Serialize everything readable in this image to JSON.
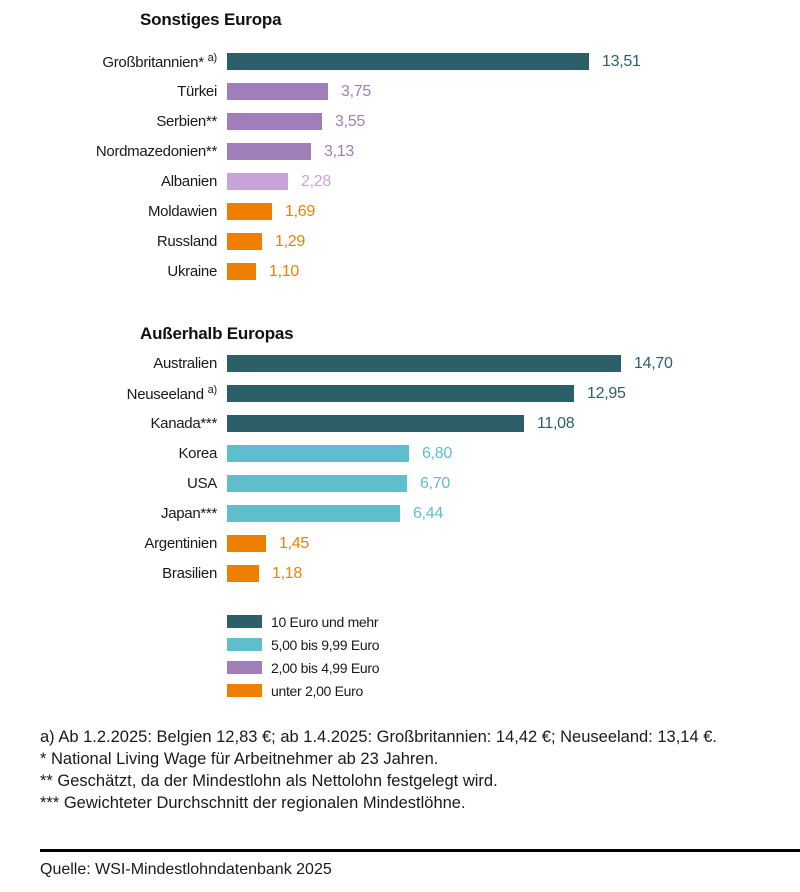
{
  "palette": {
    "teal_dark": "#2D5F68",
    "teal_light": "#5EBECD",
    "purple": "#9F7EB9",
    "purple_light": "#C6A4DB",
    "orange": "#EF7F00",
    "text": "#1A1A1A",
    "divider": "#000000"
  },
  "chart_data": {
    "type": "bar",
    "orientation": "horizontal",
    "unit": "Euro",
    "axis": "none",
    "xlim": [
      0,
      15
    ],
    "sections": [
      {
        "title": "Sonstiges Europa",
        "bars": [
          {
            "label": "Großbritannien*",
            "superscript": "a)",
            "value": 13.51,
            "value_label": "13,51",
            "category": "10 Euro und mehr",
            "color_key": "teal_dark"
          },
          {
            "label": "Türkei",
            "superscript": "",
            "value": 3.75,
            "value_label": "3,75",
            "category": "2,00 bis 4,99 Euro",
            "color_key": "purple"
          },
          {
            "label": "Serbien**",
            "superscript": "",
            "value": 3.55,
            "value_label": "3,55",
            "category": "2,00 bis 4,99 Euro",
            "color_key": "purple"
          },
          {
            "label": "Nordmazedonien**",
            "superscript": "",
            "value": 3.13,
            "value_label": "3,13",
            "category": "2,00 bis 4,99 Euro",
            "color_key": "purple"
          },
          {
            "label": "Albanien",
            "superscript": "",
            "value": 2.28,
            "value_label": "2,28",
            "category": "2,00 bis 4,99 Euro",
            "color_key": "purple_light"
          },
          {
            "label": "Moldawien",
            "superscript": "",
            "value": 1.69,
            "value_label": "1,69",
            "category": "unter 2,00 Euro",
            "color_key": "orange"
          },
          {
            "label": "Russland",
            "superscript": "",
            "value": 1.29,
            "value_label": "1,29",
            "category": "unter 2,00 Euro",
            "color_key": "orange"
          },
          {
            "label": "Ukraine",
            "superscript": "",
            "value": 1.1,
            "value_label": "1,10",
            "category": "unter 2,00 Euro",
            "color_key": "orange"
          }
        ]
      },
      {
        "title": "Außerhalb Europas",
        "bars": [
          {
            "label": "Australien",
            "superscript": "",
            "value": 14.7,
            "value_label": "14,70",
            "category": "10 Euro und mehr",
            "color_key": "teal_dark"
          },
          {
            "label": "Neuseeland",
            "superscript": "a)",
            "value": 12.95,
            "value_label": "12,95",
            "category": "10 Euro und mehr",
            "color_key": "teal_dark"
          },
          {
            "label": "Kanada***",
            "superscript": "",
            "value": 11.08,
            "value_label": "11,08",
            "category": "10 Euro und mehr",
            "color_key": "teal_dark"
          },
          {
            "label": "Korea",
            "superscript": "",
            "value": 6.8,
            "value_label": "6,80",
            "category": "5,00 bis 9,99 Euro",
            "color_key": "teal_light"
          },
          {
            "label": "USA",
            "superscript": "",
            "value": 6.7,
            "value_label": "6,70",
            "category": "5,00 bis 9,99 Euro",
            "color_key": "teal_light"
          },
          {
            "label": "Japan***",
            "superscript": "",
            "value": 6.44,
            "value_label": "6,44",
            "category": "5,00 bis 9,99 Euro",
            "color_key": "teal_light"
          },
          {
            "label": "Argentinien",
            "superscript": "",
            "value": 1.45,
            "value_label": "1,45",
            "category": "unter 2,00 Euro",
            "color_key": "orange"
          },
          {
            "label": "Brasilien",
            "superscript": "",
            "value": 1.18,
            "value_label": "1,18",
            "category": "unter 2,00 Euro",
            "color_key": "orange"
          }
        ]
      }
    ],
    "legend": [
      {
        "label": "10 Euro und mehr",
        "color_key": "teal_dark"
      },
      {
        "label": "5,00 bis 9,99 Euro",
        "color_key": "teal_light"
      },
      {
        "label": "2,00 bis 4,99 Euro",
        "color_key": "purple"
      },
      {
        "label": "unter 2,00 Euro",
        "color_key": "orange"
      }
    ],
    "legend_position": "bottom-left"
  },
  "footnotes": [
    "a) Ab 1.2.2025: Belgien 12,83 €; ab 1.4.2025: Großbritannien: 14,42 €; Neuseeland: 13,14 €.",
    "* National Living Wage für Arbeitnehmer ab 23 Jahren.",
    "** Geschätzt, da der Mindestlohn als Nettolohn festgelegt wird.",
    "*** Gewichteter Durchschnitt der regionalen Mindestlöhne."
  ],
  "source": "Quelle: WSI-Mindestlohndatenbank 2025"
}
